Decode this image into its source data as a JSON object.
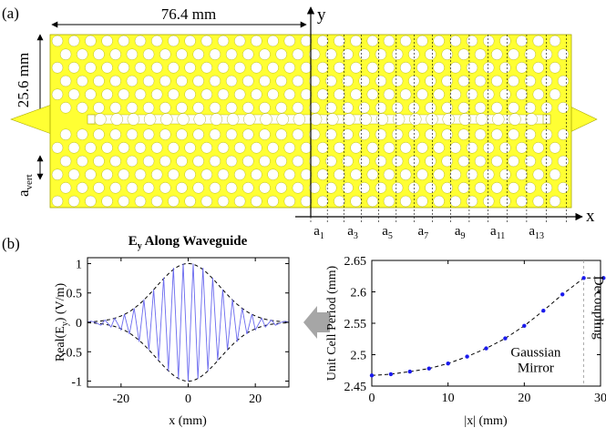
{
  "panel_a": {
    "label": "(a)",
    "width_label": "76.4 mm",
    "height_label": "25.6 mm",
    "avert_label": "a",
    "avert_sub": "vert",
    "axis_y": "y",
    "axis_x": "x",
    "period_labels": [
      {
        "base": "a",
        "sub": "1"
      },
      {
        "base": "a",
        "sub": "3"
      },
      {
        "base": "a",
        "sub": "5"
      },
      {
        "base": "a",
        "sub": "7"
      },
      {
        "base": "a",
        "sub": "9"
      },
      {
        "base": "a",
        "sub": "11"
      },
      {
        "base": "a",
        "sub": "13"
      }
    ],
    "colors": {
      "board": "#ffff33",
      "board_edge": "#a8a800",
      "hole": "#ffffff",
      "axis": "#000000"
    }
  },
  "panel_b": {
    "label": "(b)",
    "arrow_color": "#a6a6a6"
  },
  "chart_data": [
    {
      "type": "line",
      "title": "E",
      "title_sub": "y",
      "title_rest": " Along Waveguide",
      "xlabel": "x (mm)",
      "ylabel": "Real(E",
      "ylabel_sub": "y",
      "ylabel_rest": ") (V/m)",
      "xlim": [
        -30,
        30
      ],
      "ylim": [
        -1.1,
        1.1
      ],
      "xticks": [
        "-20",
        "0",
        "20"
      ],
      "xtick_values": [
        -20,
        0,
        20
      ],
      "yticks": [
        "1",
        "0.5",
        "0",
        "-0.5",
        "-1"
      ],
      "ytick_values": [
        1,
        0.5,
        0,
        -0.5,
        -1
      ],
      "grid": false,
      "envelope": {
        "amplitude": 1.0,
        "sigma_mm": 9.5
      },
      "series": [
        {
          "color": "#6a6aef",
          "x": [
            -30,
            -29,
            -27.7,
            -26,
            -24.8,
            -23,
            -21.9,
            -20,
            -19,
            -17.5,
            -16.1,
            -14.6,
            -13.2,
            -11.7,
            -10.3,
            -8.8,
            -7.3,
            -5.9,
            -4.4,
            -2.9,
            -1.5,
            0,
            1.5,
            2.9,
            4.4,
            5.9,
            7.3,
            8.8,
            10.3,
            11.7,
            13.2,
            14.6,
            16.1,
            17.5,
            19,
            20,
            21.9,
            23,
            24.8,
            26,
            27.7,
            29,
            30
          ],
          "y": [
            0,
            0.02,
            0,
            -0.05,
            0.04,
            -0.08,
            0.07,
            -0.13,
            0.14,
            -0.2,
            0.24,
            -0.33,
            0.39,
            -0.47,
            0.56,
            -0.65,
            0.76,
            -0.83,
            0.93,
            -0.96,
            1.0,
            -1.0,
            1.0,
            -0.96,
            0.93,
            -0.83,
            0.76,
            -0.65,
            0.56,
            -0.47,
            0.39,
            -0.33,
            0.24,
            -0.2,
            0.14,
            -0.13,
            0.07,
            -0.08,
            0.04,
            -0.05,
            0,
            0.02,
            0
          ]
        }
      ]
    },
    {
      "type": "scatter",
      "xlabel": "|x| (mm)",
      "ylabel": "Unit Cell Period (mm)",
      "xlim": [
        0,
        30
      ],
      "ylim": [
        2.45,
        2.65
      ],
      "xticks": [
        "0",
        "10",
        "20",
        "30"
      ],
      "xtick_values": [
        0,
        10,
        20,
        30
      ],
      "yticks": [
        "2.65",
        "2.6",
        "2.55",
        "2.5",
        "2.45"
      ],
      "ytick_values": [
        2.65,
        2.6,
        2.55,
        2.5,
        2.45
      ],
      "grid": false,
      "annotations": [
        {
          "text_lines": [
            "Gaussian",
            "Mirror"
          ],
          "x": 21.5,
          "y": 2.497
        },
        {
          "text": "Decoupling",
          "x": 29.2,
          "y": 2.575,
          "rotation": 90
        }
      ],
      "divider_x": 27.8,
      "series": [
        {
          "color": "#1a1aee",
          "x": [
            0,
            2.5,
            5,
            7.5,
            10,
            12.5,
            15,
            17.5,
            20,
            22.5,
            25,
            27.8,
            30.4
          ],
          "y": [
            2.467,
            2.469,
            2.473,
            2.478,
            2.486,
            2.497,
            2.51,
            2.526,
            2.546,
            2.57,
            2.596,
            2.622,
            2.622
          ]
        }
      ]
    }
  ]
}
